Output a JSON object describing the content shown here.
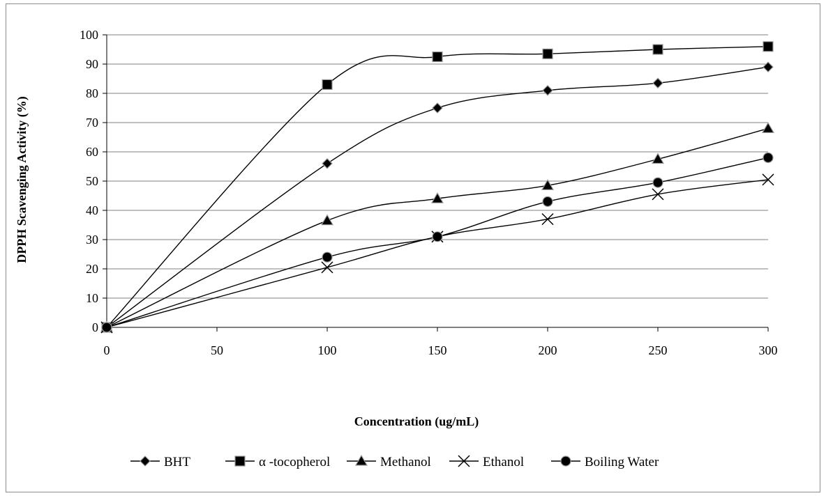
{
  "chart_data": {
    "type": "line",
    "title": "",
    "xlabel": "Concentration (ug/mL)",
    "ylabel": "DPPH Scavenging Activity (%)",
    "xlim": [
      0,
      300
    ],
    "ylim": [
      0,
      100
    ],
    "x_ticks": [
      "0",
      "50",
      "100",
      "150",
      "200",
      "250",
      "300"
    ],
    "y_ticks": [
      "0",
      "10",
      "20",
      "30",
      "40",
      "50",
      "60",
      "70",
      "80",
      "90",
      "100"
    ],
    "grid": "horizontal",
    "legend_position": "bottom",
    "x": [
      0,
      100,
      150,
      200,
      250,
      300
    ],
    "series": [
      {
        "name": "BHT",
        "marker": "diamond",
        "values": [
          0,
          56,
          75,
          81,
          83.5,
          89
        ]
      },
      {
        "name": "α -tocopherol",
        "marker": "square",
        "values": [
          0,
          83,
          92.5,
          93.5,
          95,
          96
        ]
      },
      {
        "name": "Methanol",
        "marker": "triangle",
        "values": [
          0,
          36.5,
          44,
          48.5,
          57.5,
          68
        ]
      },
      {
        "name": "Ethanol",
        "marker": "x",
        "values": [
          0,
          20.5,
          31,
          37,
          45.5,
          50.5
        ]
      },
      {
        "name": "Boiling Water",
        "marker": "circle",
        "values": [
          0,
          24,
          31,
          43,
          49.5,
          58
        ]
      }
    ]
  }
}
